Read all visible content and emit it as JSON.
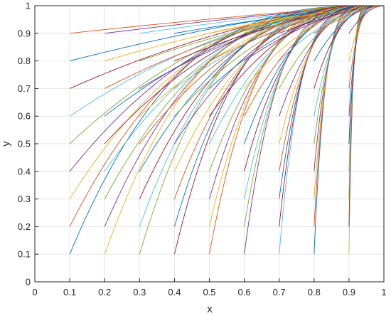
{
  "chart_data": {
    "type": "line",
    "title": "",
    "xlabel": "x",
    "ylabel": "y",
    "xlim": [
      0,
      1
    ],
    "ylim": [
      0,
      1
    ],
    "x_ticks": [
      "0",
      "0.1",
      "0.2",
      "0.3",
      "0.4",
      "0.5",
      "0.6",
      "0.7",
      "0.8",
      "0.9",
      "1"
    ],
    "y_ticks": [
      "0",
      "0.1",
      "0.2",
      "0.3",
      "0.4",
      "0.5",
      "0.6",
      "0.7",
      "0.8",
      "0.9",
      "1"
    ],
    "grid": true,
    "legend": "none",
    "curve_family": {
      "description_of_family": "one curve per start point (x0, y0) with x0 and y0 in 0.1..0.9, each ending at (1, 1)",
      "start_x_values": [
        0.1,
        0.2,
        0.3,
        0.4,
        0.5,
        0.6,
        0.7,
        0.8,
        0.9
      ],
      "start_y_values": [
        0.1,
        0.2,
        0.3,
        0.4,
        0.5,
        0.6,
        0.7,
        0.8,
        0.9
      ],
      "end_point": [
        1,
        1
      ],
      "series_count": 81
    },
    "colors": [
      "#0072bd",
      "#d95319",
      "#edb120",
      "#7e2f8e",
      "#77ac30",
      "#4dbeee",
      "#a2142f"
    ]
  }
}
